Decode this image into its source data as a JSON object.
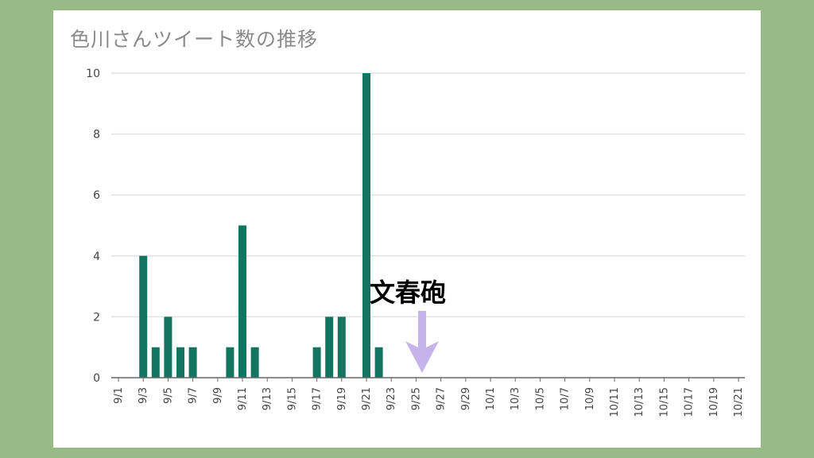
{
  "colors": {
    "page_background": "#97ba86",
    "card_background": "#ffffff",
    "bar": "#137560",
    "gridline": "#e2e2e2",
    "axis": "#666666",
    "annotation_arrow": "#c7b3ec"
  },
  "chart_data": {
    "type": "bar",
    "title": "色川さんツイート数の推移",
    "xlabel": "",
    "ylabel": "",
    "ylim": [
      0,
      10
    ],
    "yticks": [
      0,
      2,
      4,
      6,
      8,
      10
    ],
    "grid": true,
    "legend": "none",
    "categories": [
      "9/1",
      "9/2",
      "9/3",
      "9/4",
      "9/5",
      "9/6",
      "9/7",
      "9/8",
      "9/9",
      "9/10",
      "9/11",
      "9/12",
      "9/13",
      "9/14",
      "9/15",
      "9/16",
      "9/17",
      "9/18",
      "9/19",
      "9/20",
      "9/21",
      "9/22",
      "9/23",
      "9/24",
      "9/25",
      "9/26",
      "9/27",
      "9/28",
      "9/29",
      "9/30",
      "10/1",
      "10/2",
      "10/3",
      "10/4",
      "10/5",
      "10/6",
      "10/7",
      "10/8",
      "10/9",
      "10/10",
      "10/11",
      "10/12",
      "10/13",
      "10/14",
      "10/15",
      "10/16",
      "10/17",
      "10/18",
      "10/19",
      "10/20",
      "10/21",
      "10/22"
    ],
    "tick_labels": [
      "9/1",
      "9/3",
      "9/5",
      "9/7",
      "9/9",
      "9/11",
      "9/13",
      "9/15",
      "9/17",
      "9/19",
      "9/21",
      "9/23",
      "9/25",
      "9/27",
      "9/29",
      "10/1",
      "10/3",
      "10/5",
      "10/7",
      "10/9",
      "10/11",
      "10/13",
      "10/15",
      "10/17",
      "10/19",
      "10/21"
    ],
    "values": [
      0,
      0,
      4,
      1,
      2,
      1,
      1,
      0,
      0,
      1,
      5,
      1,
      0,
      0,
      0,
      0,
      1,
      2,
      2,
      0,
      10,
      1,
      0,
      0,
      0,
      0,
      0,
      0,
      0,
      0,
      0,
      0,
      0,
      0,
      0,
      0,
      0,
      0,
      0,
      0,
      0,
      0,
      0,
      0,
      0,
      0,
      0,
      0,
      0,
      0,
      0,
      0
    ],
    "annotation": {
      "text": "文春砲",
      "date": "9/26",
      "marker": "down-arrow"
    }
  }
}
